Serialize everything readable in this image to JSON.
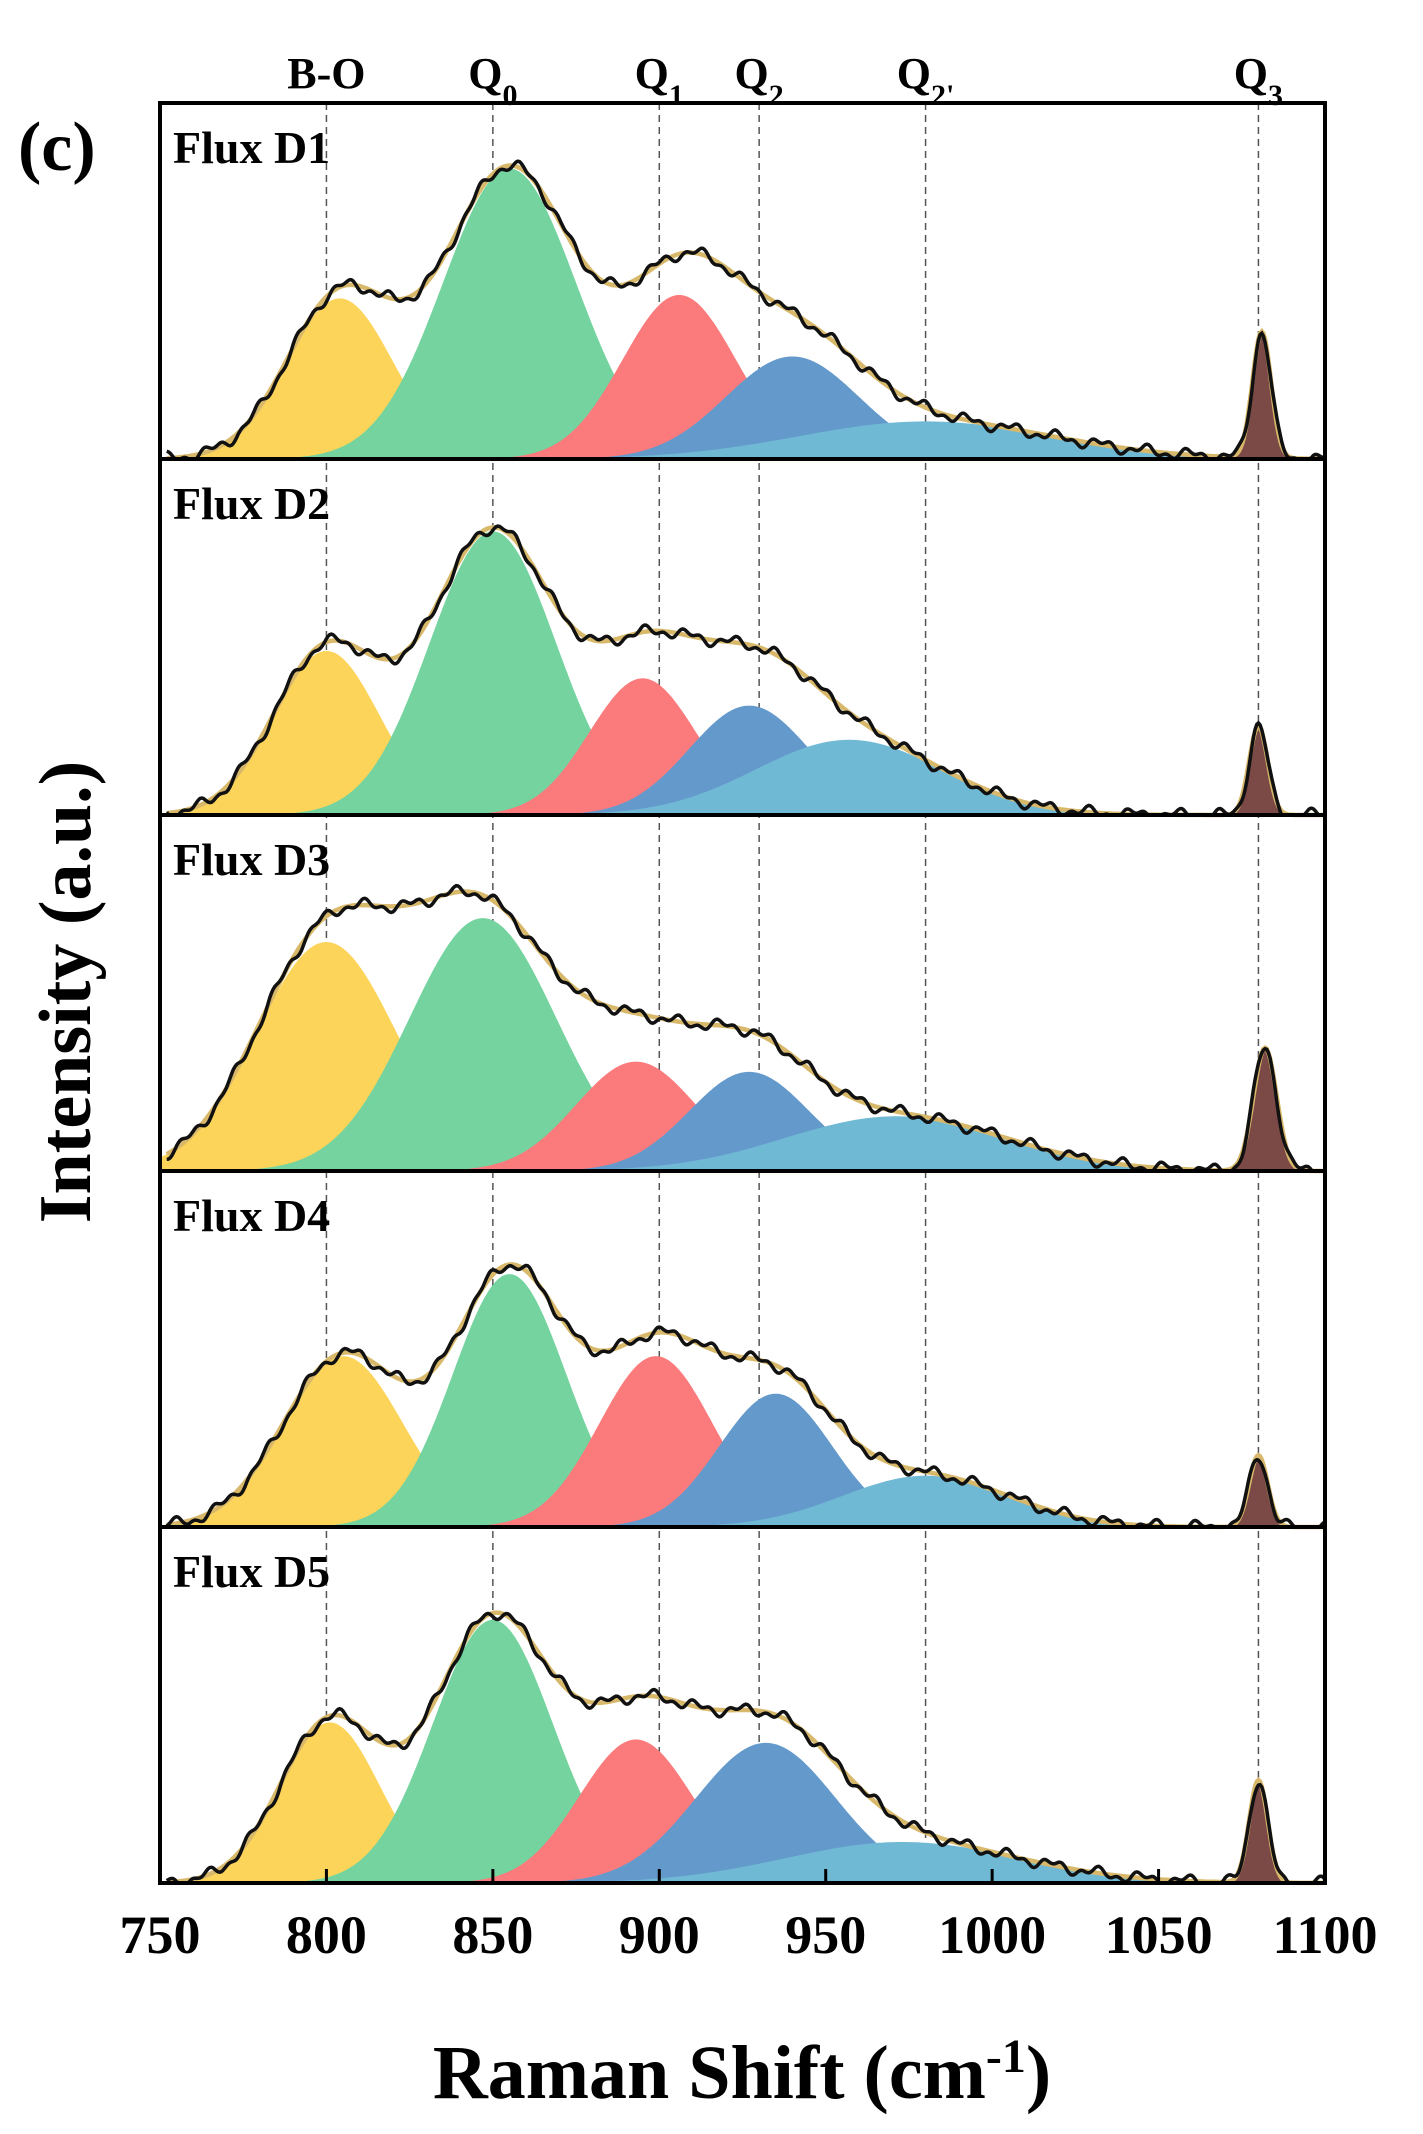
{
  "panel_label": "(c)",
  "chart_data": {
    "type": "area",
    "xlabel": "Raman Shift (cm",
    "xlabel_sup": "-1",
    "xlabel_end": ")",
    "ylabel": "Intensity (a.u.)",
    "xlim": [
      750,
      1100
    ],
    "xticks": [
      750,
      800,
      850,
      900,
      950,
      1000,
      1050,
      1100
    ],
    "reference_lines": [
      {
        "label": "B-O",
        "sub": "",
        "x": 800
      },
      {
        "label": "Q",
        "sub": "0",
        "x": 850
      },
      {
        "label": "Q",
        "sub": "1",
        "x": 900
      },
      {
        "label": "Q",
        "sub": "2",
        "x": 930
      },
      {
        "label": "Q",
        "sub": "2'",
        "x": 980
      },
      {
        "label": "Q",
        "sub": "3",
        "x": 1080
      }
    ],
    "colors": {
      "B-O": "#fcd45a",
      "Q0": "#74d39e",
      "Q1": "#fb7b7d",
      "Q2": "#6499cc",
      "Q2'": "#70b9d4",
      "Q3": "#7b4a47",
      "measured": "#111111",
      "fit": "#d8b86a"
    },
    "panels": [
      {
        "name": "Flux D1",
        "components": [
          {
            "band": "B-O",
            "center": 804,
            "height": 0.47,
            "sigma": 16
          },
          {
            "band": "Q0",
            "center": 855,
            "height": 0.85,
            "sigma": 20
          },
          {
            "band": "Q1",
            "center": 906,
            "height": 0.48,
            "sigma": 17
          },
          {
            "band": "Q2",
            "center": 940,
            "height": 0.3,
            "sigma": 20
          },
          {
            "band": "Q2'",
            "center": 980,
            "height": 0.11,
            "sigma": 38
          },
          {
            "band": "Q3",
            "center": 1081,
            "height": 0.37,
            "sigma": 2.8
          }
        ]
      },
      {
        "name": "Flux D2",
        "components": [
          {
            "band": "B-O",
            "center": 800,
            "height": 0.48,
            "sigma": 16
          },
          {
            "band": "Q0",
            "center": 850,
            "height": 0.83,
            "sigma": 19
          },
          {
            "band": "Q1",
            "center": 895,
            "height": 0.4,
            "sigma": 16
          },
          {
            "band": "Q2",
            "center": 927,
            "height": 0.32,
            "sigma": 18
          },
          {
            "band": "Q2'",
            "center": 957,
            "height": 0.22,
            "sigma": 28
          },
          {
            "band": "Q3",
            "center": 1080,
            "height": 0.26,
            "sigma": 2.8
          }
        ]
      },
      {
        "name": "Flux D3",
        "components": [
          {
            "band": "B-O",
            "center": 800,
            "height": 0.67,
            "sigma": 21
          },
          {
            "band": "Q0",
            "center": 847,
            "height": 0.74,
            "sigma": 22
          },
          {
            "band": "Q1",
            "center": 893,
            "height": 0.32,
            "sigma": 18
          },
          {
            "band": "Q2",
            "center": 927,
            "height": 0.29,
            "sigma": 18
          },
          {
            "band": "Q2'",
            "center": 971,
            "height": 0.16,
            "sigma": 33
          },
          {
            "band": "Q3",
            "center": 1082,
            "height": 0.36,
            "sigma": 3.5
          }
        ]
      },
      {
        "name": "Flux D4",
        "components": [
          {
            "band": "B-O",
            "center": 805,
            "height": 0.5,
            "sigma": 18
          },
          {
            "band": "Q0",
            "center": 855,
            "height": 0.74,
            "sigma": 17
          },
          {
            "band": "Q1",
            "center": 899,
            "height": 0.5,
            "sigma": 17
          },
          {
            "band": "Q2",
            "center": 935,
            "height": 0.39,
            "sigma": 17
          },
          {
            "band": "Q2'",
            "center": 980,
            "height": 0.15,
            "sigma": 25
          },
          {
            "band": "Q3",
            "center": 1080,
            "height": 0.21,
            "sigma": 2.8
          }
        ]
      },
      {
        "name": "Flux D5",
        "components": [
          {
            "band": "B-O",
            "center": 801,
            "height": 0.47,
            "sigma": 15
          },
          {
            "band": "Q0",
            "center": 850,
            "height": 0.77,
            "sigma": 18
          },
          {
            "band": "Q1",
            "center": 893,
            "height": 0.42,
            "sigma": 17
          },
          {
            "band": "Q2",
            "center": 932,
            "height": 0.41,
            "sigma": 21
          },
          {
            "band": "Q2'",
            "center": 973,
            "height": 0.12,
            "sigma": 35
          },
          {
            "band": "Q3",
            "center": 1080,
            "height": 0.3,
            "sigma": 2.8
          }
        ]
      }
    ]
  }
}
